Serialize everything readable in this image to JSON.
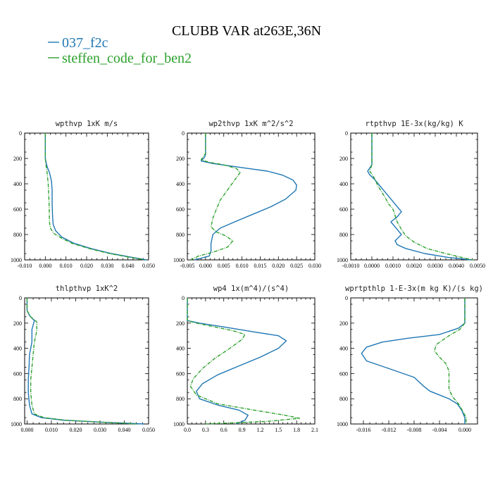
{
  "figure": {
    "title": "CLUBB VAR at263E,36N",
    "legend": [
      {
        "name": "037_f2c",
        "color": "#1f77b4"
      },
      {
        "name": "steffen_code_for_ben2",
        "color": "#2ca02c"
      }
    ]
  },
  "chart_data": [
    {
      "type": "line",
      "title": "wpthvp  1xK m/s",
      "xlim": [
        -0.01,
        0.05
      ],
      "ylim": [
        0,
        1000
      ],
      "y_inverted": true,
      "xticks": [
        "-0.010",
        "0.000",
        "0.010",
        "0.020",
        "0.030",
        "0.040",
        "0.050"
      ],
      "yticks": [
        "0",
        "200",
        "400",
        "600",
        "800",
        "1000"
      ],
      "series": [
        {
          "name": "037_f2c",
          "color": "#1f77b4",
          "dashed": false,
          "points": [
            [
              0,
              0
            ],
            [
              0,
              150
            ],
            [
              0,
              200
            ],
            [
              0.0005,
              240
            ],
            [
              0.001,
              270
            ],
            [
              0.002,
              310
            ],
            [
              0.003,
              380
            ],
            [
              0.0033,
              450
            ],
            [
              0.0033,
              550
            ],
            [
              0.0035,
              650
            ],
            [
              0.0038,
              720
            ],
            [
              0.005,
              770
            ],
            [
              0.008,
              820
            ],
            [
              0.014,
              870
            ],
            [
              0.022,
              910
            ],
            [
              0.032,
              950
            ],
            [
              0.042,
              980
            ],
            [
              0.049,
              1000
            ]
          ]
        },
        {
          "name": "steffen_code_for_ben2",
          "color": "#2ca02c",
          "dashed": true,
          "points": [
            [
              0,
              0
            ],
            [
              0,
              150
            ],
            [
              0,
              200
            ],
            [
              0.0003,
              250
            ],
            [
              0.0008,
              300
            ],
            [
              0.0014,
              400
            ],
            [
              0.0017,
              500
            ],
            [
              0.0019,
              600
            ],
            [
              0.002,
              700
            ],
            [
              0.0025,
              750
            ],
            [
              0.004,
              790
            ],
            [
              0.008,
              830
            ],
            [
              0.013,
              870
            ],
            [
              0.021,
              910
            ],
            [
              0.031,
              950
            ],
            [
              0.041,
              980
            ],
            [
              0.048,
              1000
            ]
          ]
        }
      ]
    },
    {
      "type": "line",
      "title": "wp2thvp  1xK m^2/s^2",
      "xlim": [
        -0.005,
        0.03
      ],
      "ylim": [
        0,
        1000
      ],
      "y_inverted": true,
      "xticks": [
        "-0.005",
        "0.000",
        "0.005",
        "0.010",
        "0.015",
        "0.020",
        "0.025",
        "0.030"
      ],
      "yticks": [
        "0",
        "200",
        "400",
        "600",
        "800",
        "1000"
      ],
      "series": [
        {
          "name": "037_f2c",
          "color": "#1f77b4",
          "dashed": false,
          "points": [
            [
              0,
              0
            ],
            [
              0,
              170
            ],
            [
              -0.0003,
              190
            ],
            [
              -0.0012,
              220
            ],
            [
              0.002,
              240
            ],
            [
              0.007,
              260
            ],
            [
              0.012,
              280
            ],
            [
              0.017,
              300
            ],
            [
              0.021,
              330
            ],
            [
              0.024,
              370
            ],
            [
              0.025,
              410
            ],
            [
              0.0248,
              450
            ],
            [
              0.022,
              520
            ],
            [
              0.018,
              580
            ],
            [
              0.013,
              640
            ],
            [
              0.008,
              700
            ],
            [
              0.004,
              750
            ],
            [
              0.002,
              800
            ],
            [
              0.0015,
              870
            ],
            [
              0.0015,
              930
            ],
            [
              0.001,
              970
            ],
            [
              -0.003,
              1000
            ]
          ]
        },
        {
          "name": "steffen_code_for_ben2",
          "color": "#2ca02c",
          "dashed": true,
          "points": [
            [
              0,
              0
            ],
            [
              0,
              160
            ],
            [
              -0.0005,
              180
            ],
            [
              -0.0012,
              210
            ],
            [
              0.001,
              230
            ],
            [
              0.005,
              250
            ],
            [
              0.0085,
              280
            ],
            [
              0.0095,
              310
            ],
            [
              0.008,
              370
            ],
            [
              0.006,
              450
            ],
            [
              0.004,
              530
            ],
            [
              0.003,
              600
            ],
            [
              0.002,
              670
            ],
            [
              0.0015,
              740
            ],
            [
              0.003,
              780
            ],
            [
              0.0055,
              810
            ],
            [
              0.0075,
              850
            ],
            [
              0.006,
              900
            ],
            [
              0.002,
              940
            ],
            [
              -0.002,
              970
            ],
            [
              -0.004,
              1000
            ]
          ]
        }
      ]
    },
    {
      "type": "line",
      "title": "rtpthvp  1E-3x(kg/kg) K",
      "xlim": [
        -0.001,
        0.005
      ],
      "ylim": [
        0,
        1000
      ],
      "y_inverted": true,
      "xticks": [
        "-0.0010",
        "0.0000",
        "0.0010",
        "0.0020",
        "0.0030",
        "0.0040",
        "0.0050"
      ],
      "yticks": [
        "0",
        "200",
        "400",
        "600",
        "800",
        "1000"
      ],
      "series": [
        {
          "name": "037_f2c",
          "color": "#1f77b4",
          "dashed": false,
          "points": [
            [
              0,
              0
            ],
            [
              0,
              150
            ],
            [
              0,
              250
            ],
            [
              -0.0002,
              300
            ],
            [
              -0.0001,
              330
            ],
            [
              0.0001,
              360
            ],
            [
              0.0003,
              400
            ],
            [
              0.0006,
              460
            ],
            [
              0.0009,
              520
            ],
            [
              0.0012,
              580
            ],
            [
              0.0014,
              620
            ],
            [
              0.0012,
              660
            ],
            [
              0.0009,
              700
            ],
            [
              0.0012,
              760
            ],
            [
              0.0014,
              800
            ],
            [
              0.0011,
              850
            ],
            [
              0.0012,
              880
            ],
            [
              0.0016,
              910
            ],
            [
              0.0025,
              950
            ],
            [
              0.0036,
              980
            ],
            [
              0.0047,
              1000
            ]
          ]
        },
        {
          "name": "steffen_code_for_ben2",
          "color": "#2ca02c",
          "dashed": true,
          "points": [
            [
              0,
              0
            ],
            [
              0,
              150
            ],
            [
              0,
              250
            ],
            [
              -0.0001,
              300
            ],
            [
              0.0001,
              350
            ],
            [
              0.0003,
              420
            ],
            [
              0.0006,
              500
            ],
            [
              0.0008,
              560
            ],
            [
              0.001,
              600
            ],
            [
              0.0011,
              650
            ],
            [
              0.0012,
              700
            ],
            [
              0.0014,
              760
            ],
            [
              0.0016,
              810
            ],
            [
              0.002,
              860
            ],
            [
              0.0026,
              910
            ],
            [
              0.0035,
              950
            ],
            [
              0.0045,
              990
            ],
            [
              0.0048,
              1000
            ]
          ]
        }
      ]
    },
    {
      "type": "line",
      "title": "thlpthvp  1xK^2",
      "xlim": [
        -0.001,
        0.05
      ],
      "ylim": [
        0,
        1000
      ],
      "y_inverted": true,
      "xticks": [
        "0.000",
        "0.010",
        "0.020",
        "0.030",
        "0.040",
        "0.050"
      ],
      "yticks": [
        "0",
        "200",
        "400",
        "600",
        "800",
        "1000"
      ],
      "series": [
        {
          "name": "037_f2c",
          "color": "#1f77b4",
          "dashed": false,
          "points": [
            [
              0,
              0
            ],
            [
              0,
              100
            ],
            [
              0.001,
              140
            ],
            [
              0.003,
              180
            ],
            [
              0.002,
              250
            ],
            [
              0.002,
              350
            ],
            [
              0.001,
              450
            ],
            [
              0.0008,
              550
            ],
            [
              0.0005,
              650
            ],
            [
              0.0005,
              750
            ],
            [
              0.001,
              850
            ],
            [
              0.002,
              920
            ],
            [
              0.006,
              950
            ],
            [
              0.015,
              970
            ],
            [
              0.03,
              985
            ],
            [
              0.048,
              1000
            ]
          ]
        },
        {
          "name": "steffen_code_for_ben2",
          "color": "#2ca02c",
          "dashed": true,
          "points": [
            [
              0,
              0
            ],
            [
              0,
              100
            ],
            [
              0.0015,
              150
            ],
            [
              0.004,
              190
            ],
            [
              0.004,
              260
            ],
            [
              0.003,
              350
            ],
            [
              0.0025,
              450
            ],
            [
              0.002,
              550
            ],
            [
              0.0015,
              650
            ],
            [
              0.0015,
              750
            ],
            [
              0.002,
              850
            ],
            [
              0.003,
              920
            ],
            [
              0.007,
              950
            ],
            [
              0.016,
              970
            ],
            [
              0.03,
              985
            ],
            [
              0.045,
              1000
            ]
          ]
        }
      ]
    },
    {
      "type": "line",
      "title": "wp4  1x(m^4)/(s^4)",
      "xlim": [
        0,
        2.1
      ],
      "ylim": [
        0,
        1000
      ],
      "y_inverted": true,
      "xticks": [
        "0.0",
        "0.3",
        "0.6",
        "0.9",
        "1.2",
        "1.5",
        "1.8",
        "2.1"
      ],
      "yticks": [
        "0",
        "200",
        "400",
        "600",
        "800",
        "1000"
      ],
      "series": [
        {
          "name": "037_f2c",
          "color": "#1f77b4",
          "dashed": false,
          "points": [
            [
              0,
              0
            ],
            [
              0,
              180
            ],
            [
              0.2,
              200
            ],
            [
              0.6,
              230
            ],
            [
              1.1,
              270
            ],
            [
              1.5,
              300
            ],
            [
              1.63,
              340
            ],
            [
              1.5,
              400
            ],
            [
              1.2,
              470
            ],
            [
              0.85,
              540
            ],
            [
              0.5,
              610
            ],
            [
              0.25,
              680
            ],
            [
              0.15,
              740
            ],
            [
              0.2,
              800
            ],
            [
              0.5,
              850
            ],
            [
              0.85,
              890
            ],
            [
              1.0,
              930
            ],
            [
              0.95,
              970
            ],
            [
              0.8,
              1000
            ]
          ]
        },
        {
          "name": "steffen_code_for_ben2",
          "color": "#2ca02c",
          "dashed": true,
          "points": [
            [
              0,
              0
            ],
            [
              0,
              180
            ],
            [
              0.15,
              200
            ],
            [
              0.45,
              230
            ],
            [
              0.75,
              260
            ],
            [
              0.95,
              290
            ],
            [
              0.9,
              330
            ],
            [
              0.7,
              400
            ],
            [
              0.45,
              480
            ],
            [
              0.25,
              560
            ],
            [
              0.1,
              640
            ],
            [
              0.05,
              700
            ],
            [
              0.15,
              770
            ],
            [
              0.5,
              840
            ],
            [
              1.1,
              890
            ],
            [
              1.6,
              930
            ],
            [
              1.85,
              955
            ],
            [
              1.3,
              980
            ],
            [
              0.3,
              1000
            ]
          ]
        }
      ]
    },
    {
      "type": "line",
      "title": "wprtpthlp  1-E-3x(m kg K)/(s kg)",
      "xlim": [
        -0.018,
        0.002
      ],
      "ylim": [
        0,
        1000
      ],
      "y_inverted": true,
      "xticks": [
        "-0.016",
        "-0.012",
        "-0.008",
        "-0.004",
        "0.000"
      ],
      "yticks": [
        "0",
        "200",
        "400",
        "600",
        "800",
        "1000"
      ],
      "series": [
        {
          "name": "037_f2c",
          "color": "#1f77b4",
          "dashed": false,
          "points": [
            [
              0,
              0
            ],
            [
              0,
              200
            ],
            [
              -0.001,
              240
            ],
            [
              -0.004,
              290
            ],
            [
              -0.009,
              320
            ],
            [
              -0.013,
              350
            ],
            [
              -0.0155,
              390
            ],
            [
              -0.0163,
              440
            ],
            [
              -0.0155,
              500
            ],
            [
              -0.012,
              560
            ],
            [
              -0.008,
              630
            ],
            [
              -0.0065,
              700
            ],
            [
              -0.0055,
              740
            ],
            [
              -0.004,
              770
            ],
            [
              -0.0025,
              800
            ],
            [
              -0.0012,
              840
            ],
            [
              -0.0005,
              890
            ],
            [
              0,
              950
            ],
            [
              0,
              1000
            ]
          ]
        },
        {
          "name": "steffen_code_for_ben2",
          "color": "#2ca02c",
          "dashed": true,
          "points": [
            [
              0,
              0
            ],
            [
              0,
              200
            ],
            [
              -0.0008,
              250
            ],
            [
              -0.0025,
              300
            ],
            [
              -0.0045,
              370
            ],
            [
              -0.0048,
              420
            ],
            [
              -0.004,
              470
            ],
            [
              -0.003,
              520
            ],
            [
              -0.0025,
              580
            ],
            [
              -0.0025,
              650
            ],
            [
              -0.0025,
              720
            ],
            [
              -0.002,
              780
            ],
            [
              -0.001,
              840
            ],
            [
              -0.0003,
              900
            ],
            [
              0.0002,
              950
            ],
            [
              0.0002,
              1000
            ]
          ]
        }
      ]
    }
  ]
}
